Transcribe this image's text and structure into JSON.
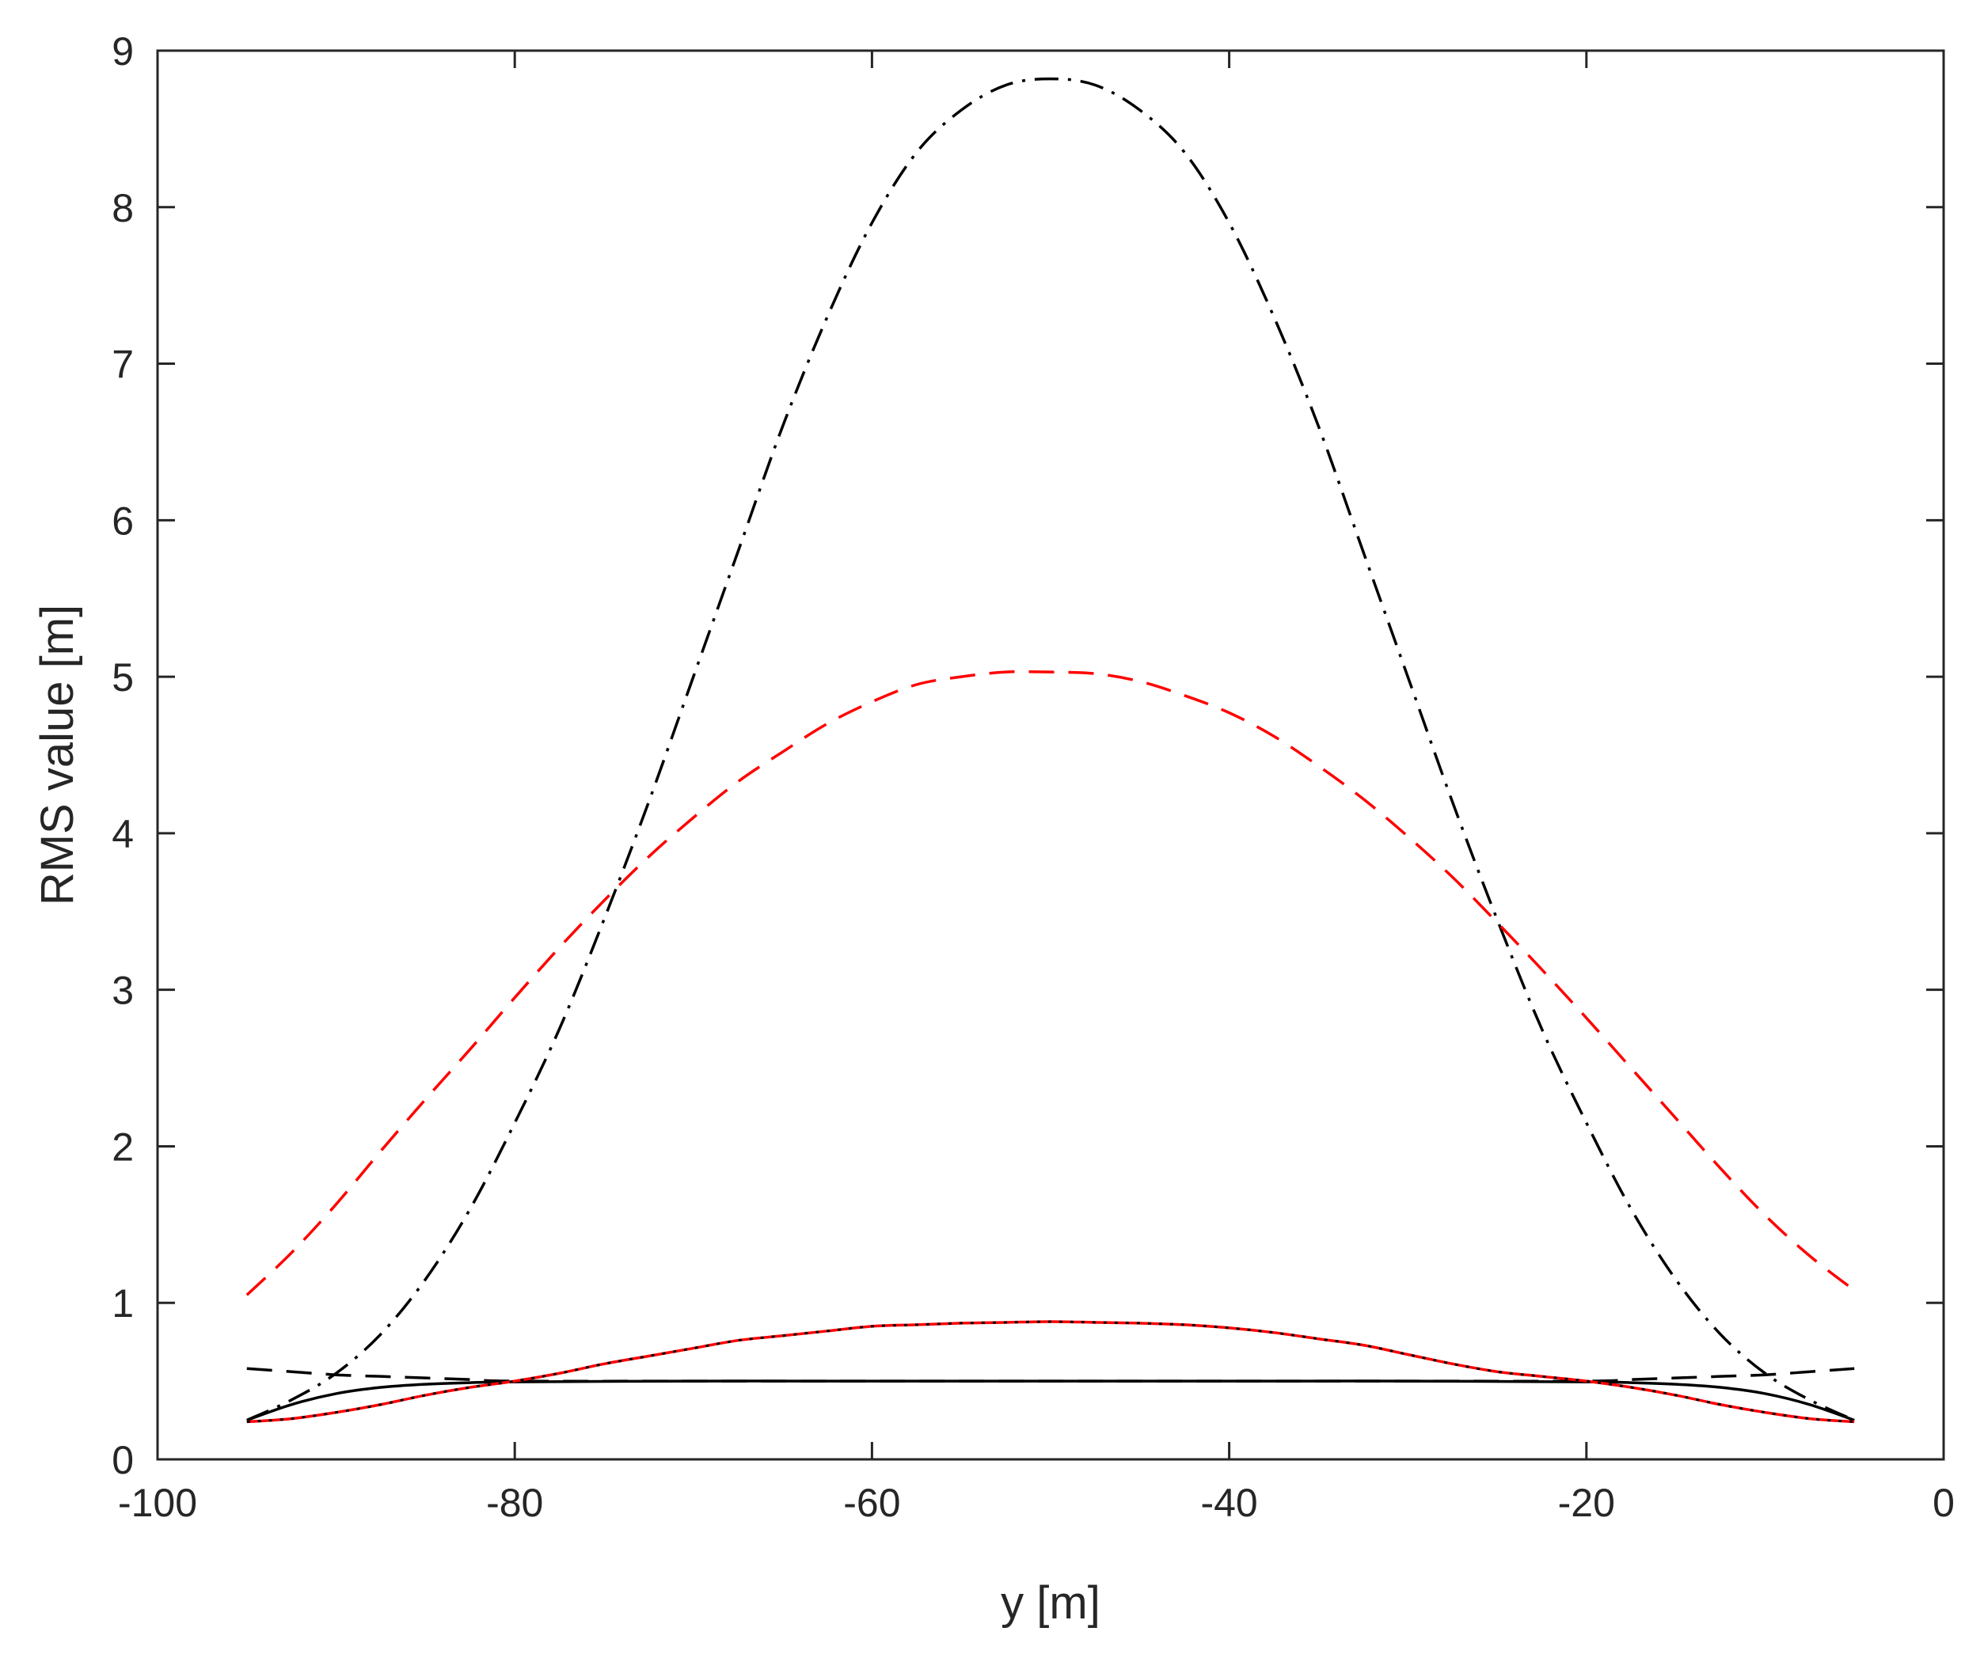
{
  "chart_data": {
    "type": "line",
    "title": "",
    "xlabel": "y [m]",
    "ylabel": "RMS value [m]",
    "xlim": [
      -100,
      0
    ],
    "ylim": [
      0,
      9
    ],
    "x_ticks": [
      -100,
      -80,
      -60,
      -40,
      -20,
      0
    ],
    "y_ticks": [
      0,
      1,
      2,
      3,
      4,
      5,
      6,
      7,
      8,
      9
    ],
    "grid": false,
    "legend": "none",
    "box": true,
    "series": [
      {
        "color": "#000000",
        "dash": "dashdot",
        "x": [
          -95,
          -92.5,
          -90,
          -87.5,
          -85,
          -82.5,
          -80,
          -77.5,
          -75,
          -72.5,
          -70,
          -67.5,
          -65,
          -62.5,
          -60,
          -57.5,
          -55,
          -52.5,
          -50,
          -47.5,
          -45,
          -42.5,
          -40,
          -37.5,
          -35,
          -32.5,
          -30,
          -27.5,
          -25,
          -22.5,
          -20,
          -17.5,
          -15,
          -12.5,
          -10,
          -7.5,
          -5
        ],
        "y": [
          0.25,
          0.38,
          0.55,
          0.8,
          1.15,
          1.6,
          2.15,
          2.75,
          3.45,
          4.2,
          5.0,
          5.8,
          6.6,
          7.3,
          7.9,
          8.35,
          8.62,
          8.78,
          8.82,
          8.78,
          8.62,
          8.35,
          7.9,
          7.3,
          6.6,
          5.8,
          5.0,
          4.2,
          3.45,
          2.75,
          2.15,
          1.6,
          1.15,
          0.8,
          0.55,
          0.38,
          0.25
        ]
      },
      {
        "color": "#ff0000",
        "dash": "dashed",
        "x": [
          -95,
          -92.5,
          -90,
          -87.5,
          -85,
          -82.5,
          -80,
          -77.5,
          -75,
          -72.5,
          -70,
          -67.5,
          -65,
          -62.5,
          -60,
          -57.5,
          -55,
          -52.5,
          -50,
          -47.5,
          -45,
          -42.5,
          -40,
          -37.5,
          -35,
          -32.5,
          -30,
          -27.5,
          -25,
          -22.5,
          -20,
          -17.5,
          -15,
          -12.5,
          -10,
          -7.5,
          -5
        ],
        "y": [
          1.05,
          1.32,
          1.63,
          1.97,
          2.3,
          2.62,
          2.95,
          3.27,
          3.57,
          3.85,
          4.1,
          4.33,
          4.52,
          4.7,
          4.84,
          4.95,
          5.0,
          5.03,
          5.03,
          5.02,
          4.97,
          4.88,
          4.77,
          4.62,
          4.43,
          4.22,
          3.98,
          3.72,
          3.43,
          3.13,
          2.82,
          2.5,
          2.18,
          1.86,
          1.56,
          1.3,
          1.08
        ]
      },
      {
        "color": "#000000",
        "dash": "dashed",
        "x": [
          -95,
          -92.5,
          -90,
          -87.5,
          -85,
          -82.5,
          -80,
          -70,
          -60,
          -50,
          -40,
          -30,
          -20,
          -17.5,
          -15,
          -12.5,
          -10,
          -7.5,
          -5
        ],
        "y": [
          0.58,
          0.56,
          0.54,
          0.53,
          0.52,
          0.51,
          0.5,
          0.5,
          0.5,
          0.5,
          0.5,
          0.5,
          0.5,
          0.51,
          0.52,
          0.53,
          0.54,
          0.56,
          0.58
        ]
      },
      {
        "color": "#000000",
        "dash": "solid",
        "x": [
          -95,
          -92.5,
          -90,
          -87.5,
          -85,
          -82.5,
          -80,
          -70,
          -60,
          -50,
          -40,
          -30,
          -20,
          -17.5,
          -15,
          -12.5,
          -10,
          -7.5,
          -5
        ],
        "y": [
          0.25,
          0.35,
          0.42,
          0.46,
          0.48,
          0.49,
          0.495,
          0.5,
          0.5,
          0.5,
          0.5,
          0.5,
          0.495,
          0.49,
          0.48,
          0.46,
          0.42,
          0.35,
          0.25
        ]
      },
      {
        "color": "#ff0000",
        "dash": "solid",
        "x": [
          -95,
          -92.5,
          -90,
          -87.5,
          -85,
          -82.5,
          -80,
          -77.5,
          -75,
          -72.5,
          -70,
          -67.5,
          -65,
          -62.5,
          -60,
          -57.5,
          -55,
          -52.5,
          -50,
          -47.5,
          -45,
          -42.5,
          -40,
          -37.5,
          -35,
          -32.5,
          -30,
          -27.5,
          -25,
          -22.5,
          -20,
          -17.5,
          -15,
          -12.5,
          -10,
          -7.5,
          -5
        ],
        "y": [
          0.24,
          0.26,
          0.3,
          0.35,
          0.41,
          0.46,
          0.5,
          0.55,
          0.61,
          0.66,
          0.71,
          0.76,
          0.79,
          0.82,
          0.85,
          0.86,
          0.87,
          0.875,
          0.88,
          0.875,
          0.87,
          0.86,
          0.84,
          0.81,
          0.77,
          0.73,
          0.67,
          0.61,
          0.56,
          0.53,
          0.5,
          0.46,
          0.41,
          0.35,
          0.3,
          0.26,
          0.24
        ]
      },
      {
        "color": "#000000",
        "dash": "dotted",
        "x": [
          -95,
          -92.5,
          -90,
          -87.5,
          -85,
          -82.5,
          -80,
          -77.5,
          -75,
          -72.5,
          -70,
          -67.5,
          -65,
          -62.5,
          -60,
          -57.5,
          -55,
          -52.5,
          -50,
          -47.5,
          -45,
          -42.5,
          -40,
          -37.5,
          -35,
          -32.5,
          -30,
          -27.5,
          -25,
          -22.5,
          -20,
          -17.5,
          -15,
          -12.5,
          -10,
          -7.5,
          -5
        ],
        "y": [
          0.24,
          0.26,
          0.3,
          0.35,
          0.41,
          0.46,
          0.5,
          0.55,
          0.61,
          0.66,
          0.71,
          0.76,
          0.79,
          0.82,
          0.85,
          0.86,
          0.87,
          0.875,
          0.88,
          0.875,
          0.87,
          0.86,
          0.84,
          0.81,
          0.77,
          0.73,
          0.67,
          0.61,
          0.56,
          0.53,
          0.5,
          0.46,
          0.41,
          0.35,
          0.3,
          0.26,
          0.24
        ]
      }
    ]
  }
}
